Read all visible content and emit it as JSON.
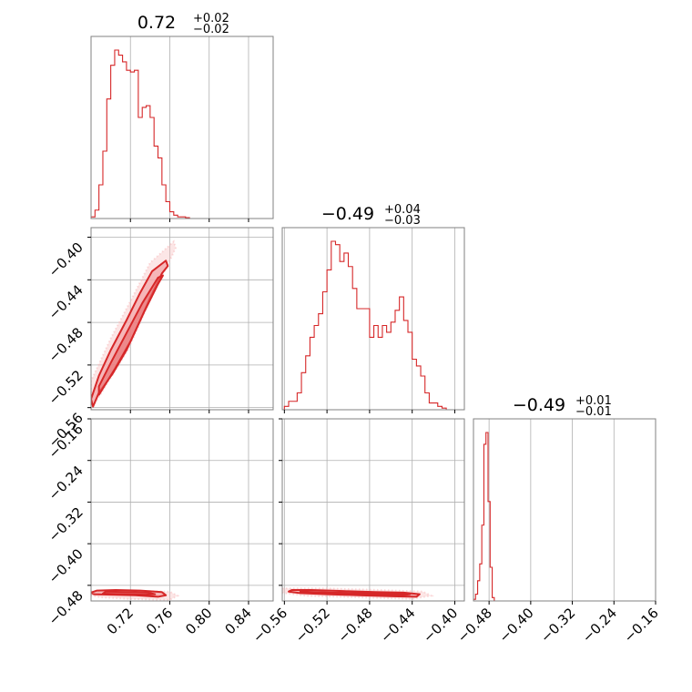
{
  "chart_data": {
    "type": "corner",
    "colors": {
      "line": "#d62728",
      "contour_fill": "#f4a6a8",
      "scatter": "#f7b6b8",
      "grid": "#b0b0b0",
      "frame": "#808080"
    },
    "grid": true,
    "parameters": [
      {
        "title": {
          "value": "0.72",
          "plus": "+0.02",
          "minus": "−0.02"
        },
        "range": [
          0.68,
          0.865
        ],
        "ticks": [
          0.72,
          0.76,
          0.8,
          0.84
        ],
        "tick_labels": [
          "0.72",
          "0.76",
          "0.80",
          "0.84"
        ]
      },
      {
        "title": {
          "value": "−0.49",
          "plus": "+0.04",
          "minus": "−0.03"
        },
        "range": [
          -0.562,
          -0.391
        ],
        "ticks": [
          -0.56,
          -0.52,
          -0.48,
          -0.44,
          -0.4
        ],
        "tick_labels": [
          "−0.56",
          "−0.52",
          "−0.48",
          "−0.44",
          "−0.40"
        ]
      },
      {
        "title": {
          "value": "−0.49",
          "plus": "+0.01",
          "minus": "−0.01"
        },
        "range": [
          -0.51,
          -0.16
        ],
        "ticks": [
          -0.48,
          -0.4,
          -0.32,
          -0.24,
          -0.16
        ],
        "tick_labels": [
          "−0.48",
          "−0.40",
          "−0.32",
          "−0.24",
          "−0.16"
        ]
      }
    ],
    "histograms": [
      {
        "param": 0,
        "bin_edges": [
          0.68,
          0.684,
          0.688,
          0.692,
          0.696,
          0.7,
          0.704,
          0.708,
          0.712,
          0.716,
          0.72,
          0.724,
          0.728,
          0.732,
          0.736,
          0.74,
          0.744,
          0.748,
          0.752,
          0.756,
          0.76,
          0.764,
          0.768,
          0.772,
          0.776,
          0.78
        ],
        "counts": [
          0.01,
          0.05,
          0.2,
          0.4,
          0.71,
          0.91,
          1.0,
          0.97,
          0.93,
          0.88,
          0.87,
          0.88,
          0.6,
          0.66,
          0.67,
          0.6,
          0.43,
          0.36,
          0.2,
          0.1,
          0.04,
          0.02,
          0.01,
          0.01,
          0.005
        ]
      },
      {
        "param": 1,
        "bin_edges": [
          -0.56,
          -0.556,
          -0.552,
          -0.548,
          -0.544,
          -0.54,
          -0.536,
          -0.532,
          -0.528,
          -0.524,
          -0.52,
          -0.516,
          -0.512,
          -0.508,
          -0.504,
          -0.5,
          -0.496,
          -0.492,
          -0.488,
          -0.484,
          -0.48,
          -0.476,
          -0.472,
          -0.468,
          -0.464,
          -0.46,
          -0.456,
          -0.452,
          -0.448,
          -0.444,
          -0.44,
          -0.436,
          -0.432,
          -0.428,
          -0.424,
          -0.42,
          -0.416,
          -0.412,
          -0.408
        ],
        "counts": [
          0.02,
          0.05,
          0.05,
          0.1,
          0.22,
          0.32,
          0.43,
          0.5,
          0.57,
          0.7,
          0.83,
          1.0,
          0.98,
          0.88,
          0.93,
          0.85,
          0.72,
          0.6,
          0.6,
          0.6,
          0.43,
          0.5,
          0.43,
          0.5,
          0.46,
          0.52,
          0.59,
          0.67,
          0.53,
          0.46,
          0.3,
          0.26,
          0.2,
          0.1,
          0.04,
          0.04,
          0.02,
          0.01
        ]
      },
      {
        "param": 2,
        "bin_edges": [
          -0.51,
          -0.506,
          -0.502,
          -0.498,
          -0.494,
          -0.49,
          -0.486,
          -0.482,
          -0.478,
          -0.474,
          -0.47
        ],
        "counts": [
          0.01,
          0.04,
          0.12,
          0.22,
          0.45,
          0.93,
          1.0,
          0.59,
          0.2,
          0.02
        ]
      }
    ],
    "pairs": [
      {
        "x_param": 0,
        "y_param": 1,
        "contours": [
          [
            [
              0.682,
              -0.559
            ],
            [
              0.688,
              -0.546
            ],
            [
              0.702,
              -0.528
            ],
            [
              0.716,
              -0.506
            ],
            [
              0.728,
              -0.482
            ],
            [
              0.74,
              -0.457
            ],
            [
              0.752,
              -0.434
            ],
            [
              0.758,
              -0.427
            ],
            [
              0.756,
              -0.422
            ],
            [
              0.742,
              -0.432
            ],
            [
              0.73,
              -0.452
            ],
            [
              0.716,
              -0.478
            ],
            [
              0.7,
              -0.506
            ],
            [
              0.688,
              -0.53
            ],
            [
              0.68,
              -0.552
            ]
          ],
          [
            [
              0.688,
              -0.548
            ],
            [
              0.704,
              -0.524
            ],
            [
              0.72,
              -0.498
            ],
            [
              0.734,
              -0.47
            ],
            [
              0.748,
              -0.444
            ],
            [
              0.753,
              -0.436
            ],
            [
              0.748,
              -0.438
            ],
            [
              0.732,
              -0.462
            ],
            [
              0.716,
              -0.49
            ],
            [
              0.7,
              -0.518
            ],
            [
              0.688,
              -0.54
            ]
          ]
        ],
        "scatter_fill": [
          [
            [
              0.68,
              -0.562
            ],
            [
              0.7,
              -0.532
            ],
            [
              0.718,
              -0.505
            ],
            [
              0.738,
              -0.463
            ],
            [
              0.76,
              -0.422
            ],
            [
              0.766,
              -0.41
            ],
            [
              0.764,
              -0.404
            ],
            [
              0.74,
              -0.424
            ],
            [
              0.72,
              -0.46
            ],
            [
              0.7,
              -0.495
            ],
            [
              0.68,
              -0.535
            ]
          ]
        ]
      },
      {
        "x_param": 0,
        "y_param": 2,
        "contours": [
          [
            [
              0.683,
              -0.497
            ],
            [
              0.7,
              -0.498
            ],
            [
              0.725,
              -0.499
            ],
            [
              0.748,
              -0.502
            ],
            [
              0.756,
              -0.499
            ],
            [
              0.752,
              -0.493
            ],
            [
              0.73,
              -0.49
            ],
            [
              0.705,
              -0.489
            ],
            [
              0.686,
              -0.49
            ],
            [
              0.68,
              -0.494
            ]
          ],
          [
            [
              0.692,
              -0.496
            ],
            [
              0.715,
              -0.497
            ],
            [
              0.735,
              -0.498
            ],
            [
              0.745,
              -0.497
            ],
            [
              0.738,
              -0.494
            ],
            [
              0.715,
              -0.493
            ],
            [
              0.695,
              -0.492
            ]
          ]
        ],
        "scatter_fill": [
          [
            [
              0.676,
              -0.492
            ],
            [
              0.71,
              -0.49
            ],
            [
              0.76,
              -0.492
            ],
            [
              0.768,
              -0.5
            ],
            [
              0.76,
              -0.508
            ],
            [
              0.72,
              -0.506
            ],
            [
              0.69,
              -0.503
            ],
            [
              0.676,
              -0.498
            ]
          ]
        ]
      },
      {
        "x_param": 1,
        "y_param": 2,
        "contours": [
          [
            [
              -0.553,
              -0.489
            ],
            [
              -0.535,
              -0.489
            ],
            [
              -0.505,
              -0.491
            ],
            [
              -0.475,
              -0.493
            ],
            [
              -0.448,
              -0.494
            ],
            [
              -0.433,
              -0.497
            ],
            [
              -0.436,
              -0.502
            ],
            [
              -0.458,
              -0.501
            ],
            [
              -0.49,
              -0.499
            ],
            [
              -0.52,
              -0.497
            ],
            [
              -0.545,
              -0.495
            ],
            [
              -0.556,
              -0.492
            ]
          ],
          [
            [
              -0.545,
              -0.492
            ],
            [
              -0.515,
              -0.494
            ],
            [
              -0.485,
              -0.495
            ],
            [
              -0.455,
              -0.496
            ],
            [
              -0.442,
              -0.497
            ],
            [
              -0.45,
              -0.499
            ],
            [
              -0.485,
              -0.498
            ],
            [
              -0.52,
              -0.496
            ],
            [
              -0.545,
              -0.494
            ]
          ]
        ],
        "scatter_fill": [
          [
            [
              -0.562,
              -0.486
            ],
            [
              -0.52,
              -0.486
            ],
            [
              -0.47,
              -0.489
            ],
            [
              -0.43,
              -0.492
            ],
            [
              -0.422,
              -0.5
            ],
            [
              -0.44,
              -0.506
            ],
            [
              -0.49,
              -0.503
            ],
            [
              -0.54,
              -0.5
            ],
            [
              -0.563,
              -0.494
            ]
          ]
        ]
      }
    ]
  }
}
